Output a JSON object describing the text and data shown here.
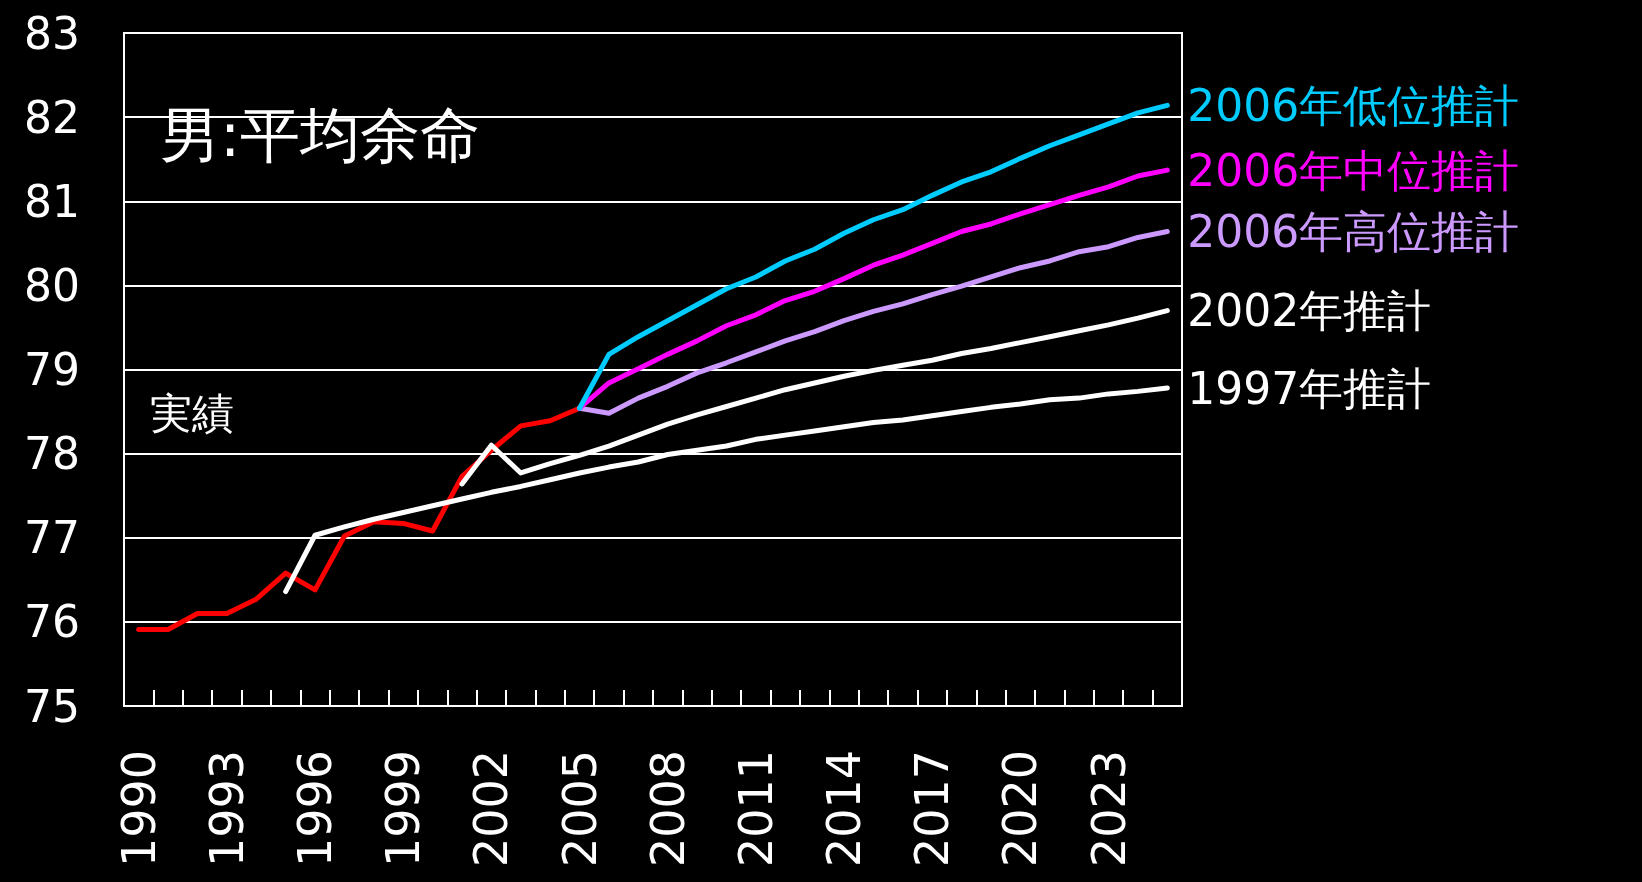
{
  "chart_data": {
    "type": "line",
    "title": "男:平均余命",
    "categories": [
      "1990",
      null,
      null,
      "1993",
      null,
      null,
      "1996",
      null,
      null,
      "1999",
      null,
      null,
      "2002",
      null,
      null,
      "2005",
      null,
      null,
      "2008",
      null,
      null,
      "2011",
      null,
      null,
      "2014",
      null,
      null,
      "2017",
      null,
      null,
      "2020",
      null,
      null,
      "2023",
      null,
      null
    ],
    "series": [
      {
        "color": "#ff0000",
        "values": [
          75.91,
          75.91,
          76.1,
          76.1,
          76.27,
          76.58,
          76.38,
          77.02,
          77.19,
          77.17,
          77.08,
          77.73,
          78.04,
          78.33,
          78.39,
          78.54,
          null,
          null,
          null,
          null,
          null,
          null,
          null,
          null,
          null,
          null,
          null,
          null,
          null,
          null,
          null,
          null,
          null,
          null,
          null,
          null
        ]
      },
      {
        "name": "1997年推計",
        "color": "#ffffff",
        "values": [
          null,
          null,
          null,
          null,
          null,
          76.36,
          77.03,
          77.13,
          77.22,
          77.3,
          77.38,
          77.46,
          77.54,
          77.61,
          77.69,
          77.77,
          77.84,
          77.9,
          77.99,
          78.04,
          78.09,
          78.17,
          78.22,
          78.27,
          78.32,
          78.37,
          78.4,
          78.45,
          78.5,
          78.55,
          78.59,
          78.64,
          78.66,
          78.71,
          78.74,
          78.78
        ]
      },
      {
        "name": "2002年推計",
        "color": "#fefefe",
        "values": [
          null,
          null,
          null,
          null,
          null,
          null,
          null,
          null,
          null,
          null,
          null,
          77.64,
          78.1,
          77.77,
          77.88,
          77.98,
          78.09,
          78.22,
          78.35,
          78.46,
          78.56,
          78.66,
          78.76,
          78.84,
          78.92,
          78.99,
          79.05,
          79.11,
          79.19,
          79.25,
          79.32,
          79.39,
          79.46,
          79.53,
          79.61,
          79.7
        ]
      },
      {
        "name": "2006年高位推計",
        "color": "#cc99ff",
        "values": [
          null,
          null,
          null,
          null,
          null,
          null,
          null,
          null,
          null,
          null,
          null,
          null,
          null,
          null,
          null,
          78.54,
          78.48,
          78.66,
          78.8,
          78.96,
          79.08,
          79.21,
          79.34,
          79.45,
          79.58,
          79.69,
          79.78,
          79.89,
          79.99,
          80.1,
          80.21,
          80.29,
          80.4,
          80.46,
          80.57,
          80.64
        ]
      },
      {
        "name": "2006年中位推計",
        "color": "#ff00ff",
        "values": [
          null,
          null,
          null,
          null,
          null,
          null,
          null,
          null,
          null,
          null,
          null,
          null,
          null,
          null,
          null,
          78.54,
          78.84,
          79.01,
          79.18,
          79.34,
          79.52,
          79.65,
          79.82,
          79.93,
          80.08,
          80.24,
          80.36,
          80.5,
          80.64,
          80.73,
          80.85,
          80.96,
          81.07,
          81.17,
          81.3,
          81.37
        ]
      },
      {
        "name": "2006年低位推計",
        "color": "#00ccff",
        "values": [
          null,
          null,
          null,
          null,
          null,
          null,
          null,
          null,
          null,
          null,
          null,
          null,
          null,
          null,
          null,
          78.54,
          79.18,
          79.39,
          79.58,
          79.77,
          79.96,
          80.1,
          80.29,
          80.43,
          80.62,
          80.78,
          80.9,
          81.07,
          81.23,
          81.35,
          81.51,
          81.66,
          81.79,
          81.92,
          82.05,
          82.14
        ]
      }
    ],
    "annotations": [
      "実績"
    ],
    "ylim": [
      75,
      83
    ],
    "yticks": [
      75,
      76,
      77,
      78,
      79,
      80,
      81,
      82,
      83
    ],
    "grid": "y",
    "marker": "none",
    "line_style": "solid",
    "legend": false
  }
}
